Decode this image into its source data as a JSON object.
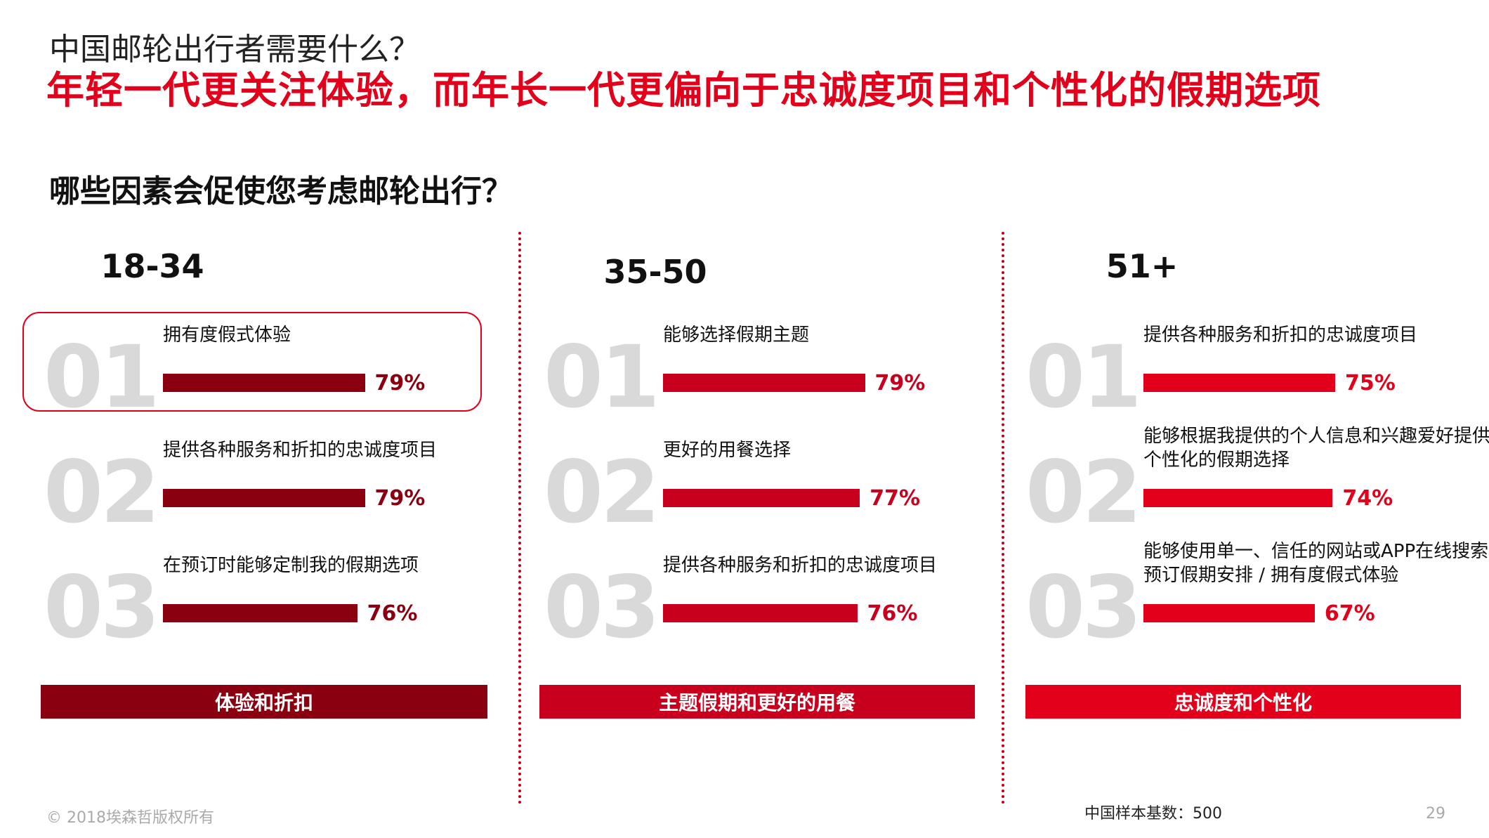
{
  "header": {
    "kicker": "中国邮轮出行者需要什么？",
    "headline": "年轻一代更关注体验，而年长一代更偏向于忠诚度项目和个性化的假期选项",
    "question": "哪些因素会促使您考虑邮轮出行？"
  },
  "colors": {
    "group1": "#8a0010",
    "group2": "#c8001e",
    "group3": "#e2001a",
    "rank_gray": "#d9d9d9",
    "accent": "#e2001a"
  },
  "chart_data": [
    {
      "type": "bar",
      "title": "18-34",
      "categories": [
        "拥有度假式体验",
        "提供各种服务和折扣的忠诚度项目",
        "在预订时能够定制我的假期选项"
      ],
      "ranks": [
        "01",
        "02",
        "03"
      ],
      "values": [
        79,
        79,
        76
      ],
      "value_labels": [
        "79%",
        "79%",
        "76%"
      ],
      "unit": "%",
      "summary": "体验和折扣",
      "highlighted_index": 0
    },
    {
      "type": "bar",
      "title": "35-50",
      "categories": [
        "能够选择假期主题",
        "更好的用餐选择",
        "提供各种服务和折扣的忠诚度项目"
      ],
      "ranks": [
        "01",
        "02",
        "03"
      ],
      "values": [
        79,
        77,
        76
      ],
      "value_labels": [
        "79%",
        "77%",
        "76%"
      ],
      "unit": "%",
      "summary": "主题假期和更好的用餐"
    },
    {
      "type": "bar",
      "title": "51+",
      "categories": [
        "提供各种服务和折扣的忠诚度项目",
        "能够根据我提供的个人信息和兴趣爱好提供\n个性化的假期选择",
        "能够使用单一、信任的网站或APP在线搜索和\n预订假期安排 / 拥有度假式体验"
      ],
      "ranks": [
        "01",
        "02",
        "03"
      ],
      "values": [
        75,
        74,
        67
      ],
      "value_labels": [
        "75%",
        "74%",
        "67%"
      ],
      "unit": "%",
      "summary": "忠诚度和个性化"
    }
  ],
  "footer": {
    "copyright": "© 2018埃森哲版权所有",
    "sample": "中国样本基数：500",
    "page_number": "29"
  }
}
